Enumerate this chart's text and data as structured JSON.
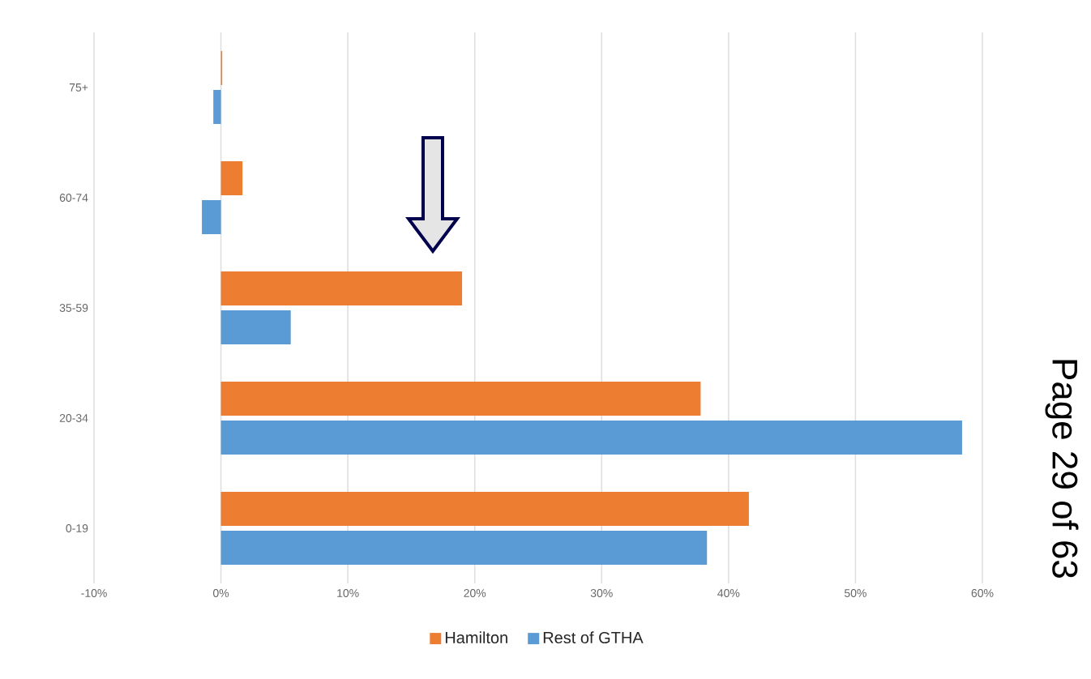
{
  "chart_data": {
    "type": "bar",
    "orientation": "horizontal",
    "categories": [
      "75+",
      "60-74",
      "35-59",
      "20-34",
      "0-19"
    ],
    "series": [
      {
        "name": "Hamilton",
        "color": "#ed7d31",
        "values": [
          0.1,
          1.7,
          19.0,
          37.8,
          41.6
        ]
      },
      {
        "name": "Rest of GTHA",
        "color": "#5b9bd5",
        "values": [
          -0.6,
          -1.5,
          5.5,
          58.4,
          38.3
        ]
      }
    ],
    "xlim": [
      -10,
      60
    ],
    "xticks": [
      {
        "value": -10,
        "label": "-10%"
      },
      {
        "value": 0,
        "label": "0%"
      },
      {
        "value": 10,
        "label": "10%"
      },
      {
        "value": 20,
        "label": "20%"
      },
      {
        "value": 30,
        "label": "30%"
      },
      {
        "value": 40,
        "label": "40%"
      },
      {
        "value": 50,
        "label": "50%"
      },
      {
        "value": 60,
        "label": "60%"
      }
    ],
    "grid": "x",
    "legend": "bottom",
    "annotations": [
      "Page 29 of 63"
    ]
  }
}
